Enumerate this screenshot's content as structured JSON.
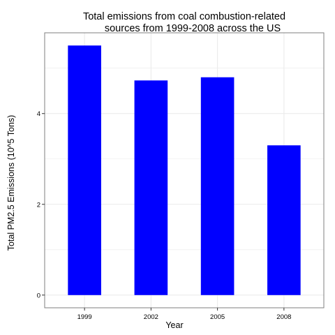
{
  "chart_data": {
    "type": "bar",
    "title_lines": [
      "Total emissions from coal combustion-related",
      "sources from 1999-2008 across the US"
    ],
    "xlabel": "Year",
    "ylabel": "Total PM2.5 Emissions (10^5 Tons)",
    "categories": [
      "1999",
      "2002",
      "2005",
      "2008"
    ],
    "values": [
      5.5,
      4.73,
      4.8,
      3.3
    ],
    "ylim": [
      -0.28,
      5.78
    ],
    "yticks": [
      0,
      2,
      4
    ],
    "ytick_labels": [
      "0",
      "2",
      "4"
    ],
    "grid": true,
    "bar_color": "#0000ff",
    "grid_color": "#ebebeb",
    "panel_border_color": "#7f7f7f"
  }
}
